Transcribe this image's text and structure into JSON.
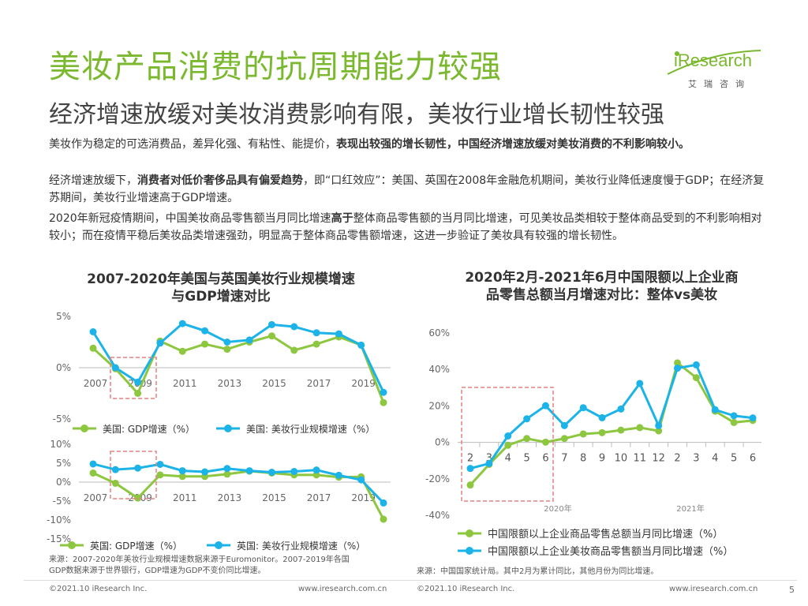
{
  "header": {
    "title": "美妆产品消费的抗周期能力较强",
    "subtitle": "经济增速放缓对美妆消费影响有限，美妆行业增长韧性较强",
    "logo_brand": "iResearch",
    "logo_cn": "艾瑞咨询"
  },
  "body": {
    "p1_a": "美妆作为稳定的可选消费品，差异化强、有粘性、能提价，",
    "p1_b": "表现出较强的增长韧性，中国经济增速放缓对美妆消费的不利影响较小。",
    "p2_a": "经济增速放缓下，",
    "p2_b": "消费者对低价奢侈品具有偏爱趋势",
    "p2_c": "，即“口红效应”：美国、英国在2008年金融危机期间，美妆行业降低速度慢于GDP；在经济复苏期间，美妆行业增速高于GDP增速。",
    "p3_a": "2020年新冠疫情期间，中国美妆商品零售额当月同比增速",
    "p3_b": "高于",
    "p3_c": "整体商品零售额的当月同比增速，可见美妆品类相较于整体商品受到的不利影响相对较小；而在疫情平稳后美妆品类增速强劲，明显高于整体商品零售额增速，这进一步验证了美妆具有较强的增长韧性。"
  },
  "colors": {
    "green": "#8dc63f",
    "blue": "#1bb3e8",
    "title_green": "#7ab82e",
    "box_red": "#e8807f"
  },
  "left_chart": {
    "title_l1": "2007-2020年美国与英国美妆行业规模增速",
    "title_l2": "与GDP增速对比",
    "source_l1": "来源：2007-2020年美妆行业规模增速数据来源于Euromonitor。2007-2019年各国",
    "source_l2": "GDP数据来源于世界银行，GDP增速为GDP不变价同比增速。"
  },
  "right_chart": {
    "title_l1": "2020年2月-2021年6月中国限额以上企业商",
    "title_l2": "品零售总额当月增速对比：整体vs美妆",
    "source": "来源：中国国家统计局。其中2月为累计同比，其他月份为同比增速。",
    "year_2020": "2020年",
    "year_2021": "2021年"
  },
  "chart_data": [
    {
      "type": "line",
      "x": [
        2007,
        2008,
        2009,
        2010,
        2011,
        2012,
        2013,
        2014,
        2015,
        2016,
        2017,
        2018,
        2019,
        2020
      ],
      "tick_labels": [
        "2007",
        "2009",
        "2011",
        "2013",
        "2015",
        "2017",
        "2019"
      ],
      "y_tick_labels": [
        "5%",
        "0%",
        "-5%"
      ],
      "ylim": [
        -5,
        5
      ],
      "series": [
        {
          "name": "美国: GDP增速（%）",
          "values": [
            1.9,
            -0.1,
            -2.5,
            2.6,
            1.6,
            2.3,
            1.8,
            2.5,
            3.1,
            1.7,
            2.3,
            3.0,
            2.2,
            -3.4
          ]
        },
        {
          "name": "美国: 美妆行业规模增速（%）",
          "values": [
            3.5,
            0.0,
            -1.4,
            2.4,
            4.3,
            3.6,
            2.5,
            2.7,
            4.2,
            4.0,
            3.4,
            3.3,
            2.2,
            -2.4
          ]
        }
      ]
    },
    {
      "type": "line",
      "x": [
        2007,
        2008,
        2009,
        2010,
        2011,
        2012,
        2013,
        2014,
        2015,
        2016,
        2017,
        2018,
        2019,
        2020
      ],
      "tick_labels": [
        "2007",
        "2009",
        "2011",
        "2013",
        "2015",
        "2017",
        "2019"
      ],
      "y_tick_labels": [
        "10%",
        "5%",
        "0%",
        "-5%",
        "-10%",
        "-15%"
      ],
      "ylim": [
        -15,
        10
      ],
      "series": [
        {
          "name": "英国: GDP增速（%）",
          "values": [
            2.4,
            -0.3,
            -4.2,
            1.9,
            1.5,
            1.5,
            2.1,
            2.9,
            2.4,
            1.9,
            1.9,
            1.3,
            1.4,
            -9.8
          ]
        },
        {
          "name": "英国: 美妆行业规模增速（%）",
          "values": [
            4.8,
            3.3,
            3.7,
            4.7,
            3.0,
            2.7,
            3.6,
            3.0,
            2.6,
            2.8,
            3.2,
            1.8,
            0.6,
            -5.5
          ]
        }
      ]
    },
    {
      "type": "line",
      "categories": [
        "2",
        "3",
        "4",
        "5",
        "6",
        "7",
        "8",
        "9",
        "10",
        "11",
        "12",
        "2",
        "3",
        "4",
        "5",
        "6"
      ],
      "y_tick_labels": [
        "60%",
        "40%",
        "20%",
        "0%",
        "-20%",
        "-40%"
      ],
      "ylim": [
        -40,
        60
      ],
      "series": [
        {
          "name": "中国限额以上企业商品零售总额当月同比增速（%）",
          "values": [
            -23.4,
            -12.1,
            -1.6,
            2.1,
            0.1,
            2.1,
            4.6,
            5.3,
            6.7,
            8.1,
            6.3,
            43.6,
            35.5,
            17.1,
            10.9,
            12.0
          ]
        },
        {
          "name": "中国限额以上企业美妆商品零售额当月同比增速（%）",
          "values": [
            -14.3,
            -11.6,
            3.5,
            12.9,
            20.1,
            9.2,
            19.0,
            13.5,
            18.3,
            32.3,
            9.2,
            40.7,
            42.5,
            17.9,
            14.6,
            13.4
          ]
        }
      ]
    }
  ],
  "footer": {
    "left_copy": "©2021.10 iResearch Inc.",
    "left_url": "www.iresearch.com.cn",
    "right_copy": "©2021.10 iResearch Inc.",
    "right_url": "www.iresearch.com.cn",
    "page": "5"
  }
}
